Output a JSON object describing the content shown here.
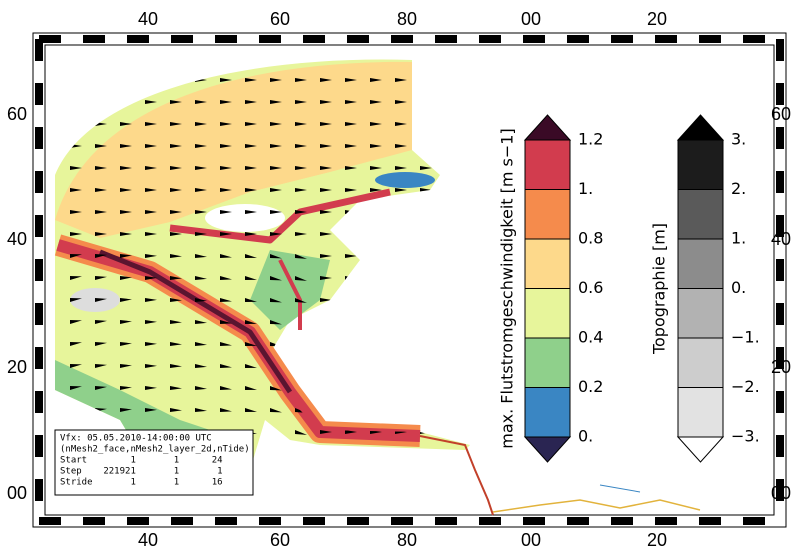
{
  "axes": {
    "top": [
      "40",
      "60",
      "80",
      "00",
      "20"
    ],
    "bottom": [
      "40",
      "60",
      "80",
      "00",
      "20"
    ],
    "left": [
      "60",
      "40",
      "20",
      "00"
    ],
    "right": [
      "60",
      "40",
      "20",
      "00"
    ]
  },
  "colorbars": [
    {
      "title": "max. Flutstromgeschwindigkeit [m s−1]",
      "ticks": [
        "1.2",
        "1.",
        "0.8",
        "0.6",
        "0.4",
        "0.2",
        "0."
      ],
      "colors": [
        "#3a0a26",
        "#d23c4e",
        "#f58b4c",
        "#fdd98b",
        "#e7f59b",
        "#8fd08b",
        "#3a86c3",
        "#2a2552"
      ]
    },
    {
      "title": "Topographie [m]",
      "ticks": [
        "3.",
        "2.",
        "1.",
        "0.",
        "−1.",
        "−2.",
        "−3."
      ],
      "colors": [
        "#000000",
        "#1c1c1c",
        "#5a5a5a",
        "#8c8c8c",
        "#b2b2b2",
        "#cdcdcd",
        "#e2e2e2",
        "#ffffff"
      ]
    }
  ],
  "info_box": {
    "lines": [
      "Vfx: 05.05.2010-14:00:00 UTC",
      "(nMesh2_face,nMesh2_layer_2d,nTide)",
      "Start        1       1      24",
      "Step    221921       1       1",
      "Stride       1       1      16"
    ]
  }
}
